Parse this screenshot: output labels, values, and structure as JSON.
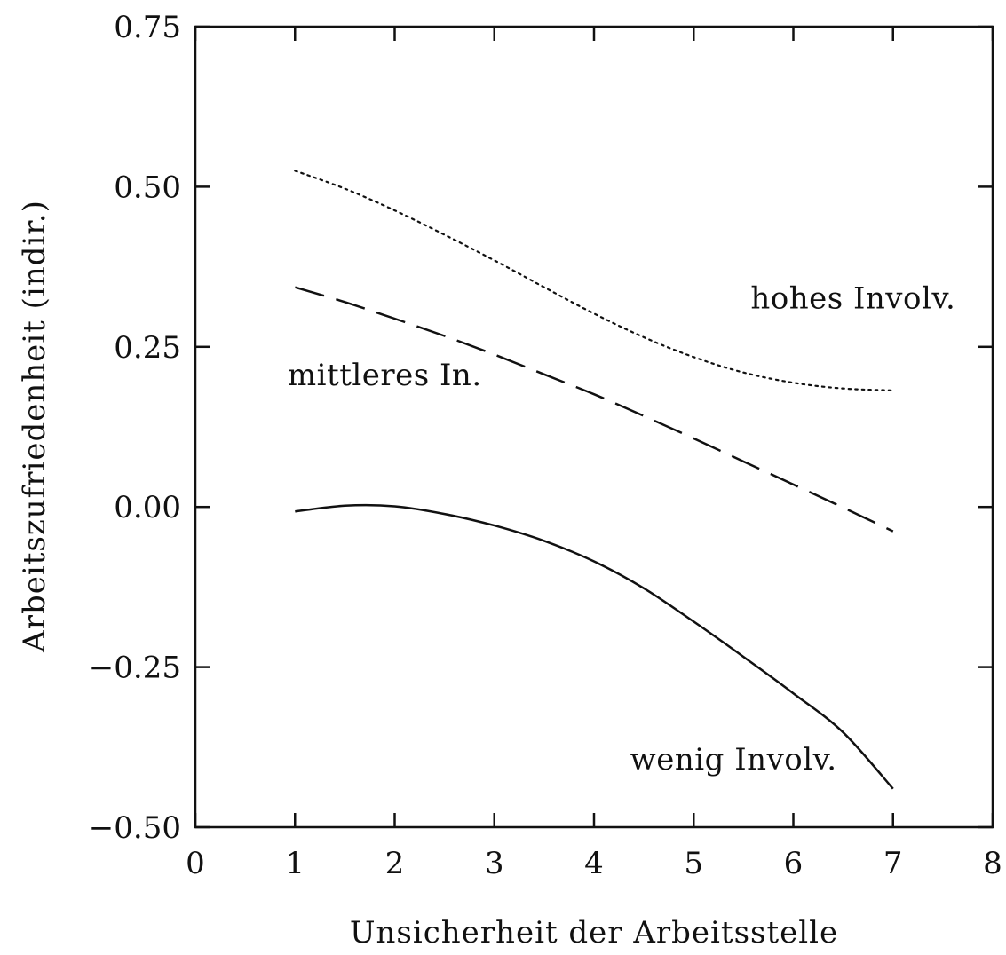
{
  "chart_data": {
    "type": "line",
    "title": "",
    "xlabel": "Unsicherheit der Arbeitsstelle",
    "ylabel": "Arbeitszufriedenheit (indir.)",
    "xlim": [
      0,
      8
    ],
    "ylim": [
      -0.5,
      0.75
    ],
    "xticks": [
      0,
      1,
      2,
      3,
      4,
      5,
      6,
      7,
      8
    ],
    "xtick_labels": [
      "0",
      "1",
      "2",
      "3",
      "4",
      "5",
      "6",
      "7",
      "8"
    ],
    "yticks": [
      -0.5,
      -0.25,
      0,
      0.25,
      0.5,
      0.75
    ],
    "ytick_labels": [
      "−0.50",
      "−0.25",
      "0.00",
      "0.25",
      "0.50",
      "0.75"
    ],
    "grid": false,
    "legend": "none",
    "series": [
      {
        "name": "hohes Involv.",
        "style": "dotted",
        "color": "#111111",
        "label_pos": [
          6.6,
          0.31
        ],
        "x": [
          1,
          1.5,
          2,
          2.5,
          3,
          3.5,
          4,
          4.5,
          5,
          5.5,
          6,
          6.5,
          7
        ],
        "y": [
          0.525,
          0.497,
          0.463,
          0.425,
          0.385,
          0.343,
          0.302,
          0.265,
          0.234,
          0.21,
          0.194,
          0.185,
          0.182
        ]
      },
      {
        "name": "mittleres In.",
        "style": "dashed",
        "color": "#111111",
        "label_pos": [
          1.9,
          0.19
        ],
        "x": [
          1,
          1.5,
          2,
          2.5,
          3,
          3.5,
          4,
          4.5,
          5,
          5.5,
          6,
          6.5,
          7
        ],
        "y": [
          0.343,
          0.32,
          0.294,
          0.267,
          0.238,
          0.207,
          0.176,
          0.142,
          0.107,
          0.071,
          0.035,
          -0.001,
          -0.038
        ]
      },
      {
        "name": "wenig Involv.",
        "style": "solid",
        "color": "#111111",
        "label_pos": [
          5.4,
          -0.41
        ],
        "x": [
          1,
          1.5,
          2,
          2.5,
          3,
          3.5,
          4,
          4.5,
          5,
          5.5,
          6,
          6.5,
          7
        ],
        "y": [
          -0.007,
          0.002,
          0.001,
          -0.011,
          -0.029,
          -0.053,
          -0.085,
          -0.127,
          -0.179,
          -0.234,
          -0.291,
          -0.352,
          -0.44
        ]
      }
    ]
  }
}
